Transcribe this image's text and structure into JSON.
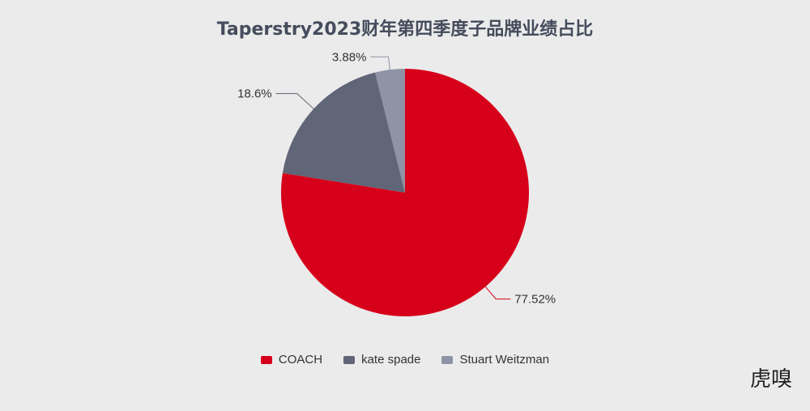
{
  "chart_data": {
    "type": "pie",
    "title": "Taperstry2023财年第四季度子品牌业绩占比",
    "slices": [
      {
        "name": "COACH",
        "value": 77.52,
        "label": "77.52%",
        "color": "#d7001b"
      },
      {
        "name": "kate spade",
        "value": 18.6,
        "label": "18.6%",
        "color": "#606577"
      },
      {
        "name": "Stuart Weitzman",
        "value": 3.88,
        "label": "3.88%",
        "color": "#8e93a6"
      }
    ],
    "legend_position": "bottom-center"
  },
  "watermark": "虎嗅"
}
